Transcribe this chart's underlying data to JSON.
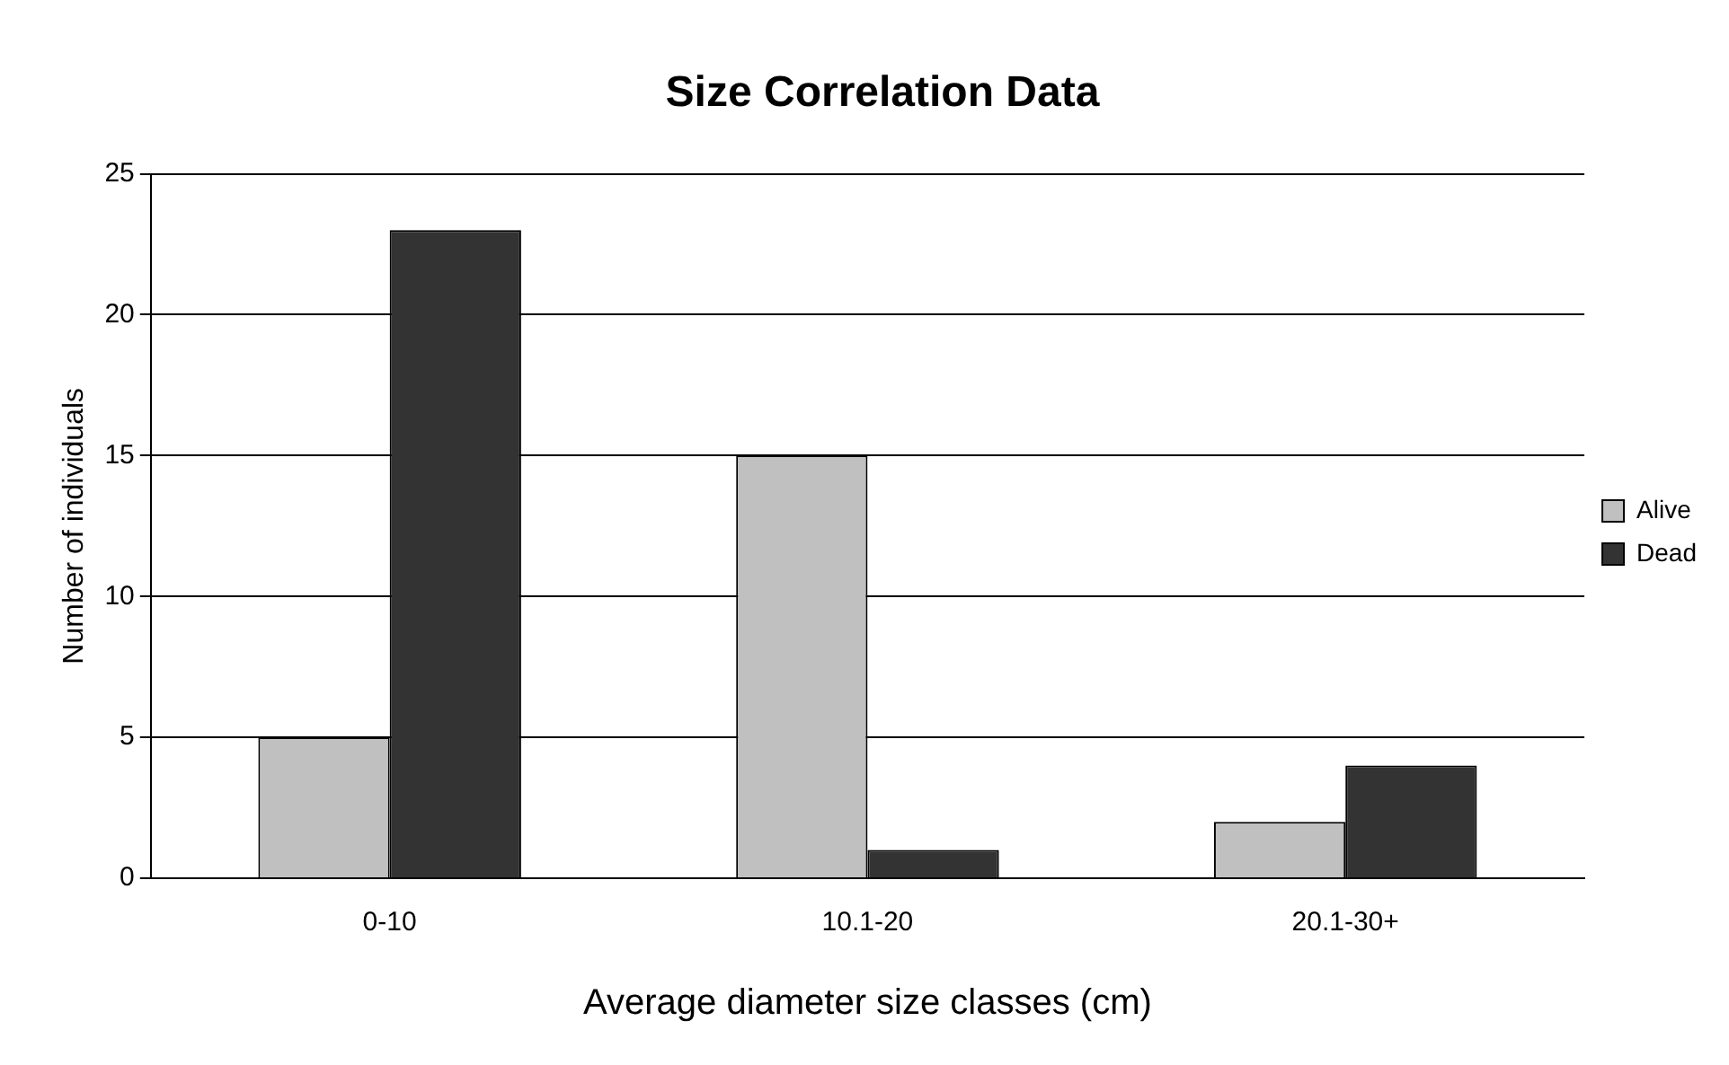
{
  "chart_data": {
    "type": "bar",
    "title": "Size Correlation Data",
    "xlabel": "Average diameter size classes (cm)",
    "ylabel": "Number of individuals",
    "categories": [
      "0-10",
      "10.1-20",
      "20.1-30+"
    ],
    "series": [
      {
        "name": "Alive",
        "color": "#c0c0c0",
        "values": [
          5,
          15,
          2
        ]
      },
      {
        "name": "Dead",
        "color": "#333333",
        "values": [
          23,
          1,
          4
        ]
      }
    ],
    "ylim": [
      0,
      25
    ],
    "yticks": [
      0,
      5,
      10,
      15,
      20,
      25
    ],
    "grid": "y",
    "legend": "right"
  }
}
